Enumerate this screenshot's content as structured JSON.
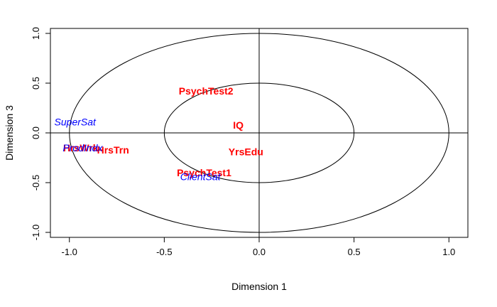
{
  "chart_data": {
    "type": "scatter",
    "title": "",
    "xlabel": "Dimension  1",
    "ylabel": "Dimension 3",
    "xlim": [
      -1.1,
      1.1
    ],
    "ylim": [
      -1.05,
      1.05
    ],
    "xticks": [
      -1.0,
      -0.5,
      0.0,
      0.5,
      1.0
    ],
    "xtick_labels": [
      "-1.0",
      "-0.5",
      "0.0",
      "0.5",
      "1.0"
    ],
    "yticks": [
      -1.0,
      -0.5,
      0.0,
      0.5,
      1.0
    ],
    "ytick_labels": [
      "-1.0",
      "-0.5",
      "0.0",
      "0.5",
      "1.0"
    ],
    "circles": [
      {
        "radius": 1.0
      },
      {
        "radius": 0.5
      }
    ],
    "reference_lines": {
      "x": 0.0,
      "y": 0.0
    },
    "grid": false,
    "series": [
      {
        "style": "red-bold",
        "color": "#ff0000",
        "points": [
          {
            "label": "PsychTest2",
            "x": -0.28,
            "y": 0.42
          },
          {
            "label": "IQ",
            "x": -0.11,
            "y": 0.08
          },
          {
            "label": "YrsEdu",
            "x": -0.07,
            "y": -0.19
          },
          {
            "label": "PsychTest1",
            "x": -0.29,
            "y": -0.4
          },
          {
            "label": "HrsTrn",
            "x": -0.77,
            "y": -0.17
          },
          {
            "label": "HrsWrk",
            "x": -0.94,
            "y": -0.15
          }
        ]
      },
      {
        "style": "blue-italic",
        "color": "#0000ff",
        "points": [
          {
            "label": "SuperSat",
            "x": -0.97,
            "y": 0.11
          },
          {
            "label": "ProdIndx",
            "x": -0.93,
            "y": -0.15
          },
          {
            "label": "ClientSat",
            "x": -0.31,
            "y": -0.44
          }
        ]
      }
    ]
  }
}
